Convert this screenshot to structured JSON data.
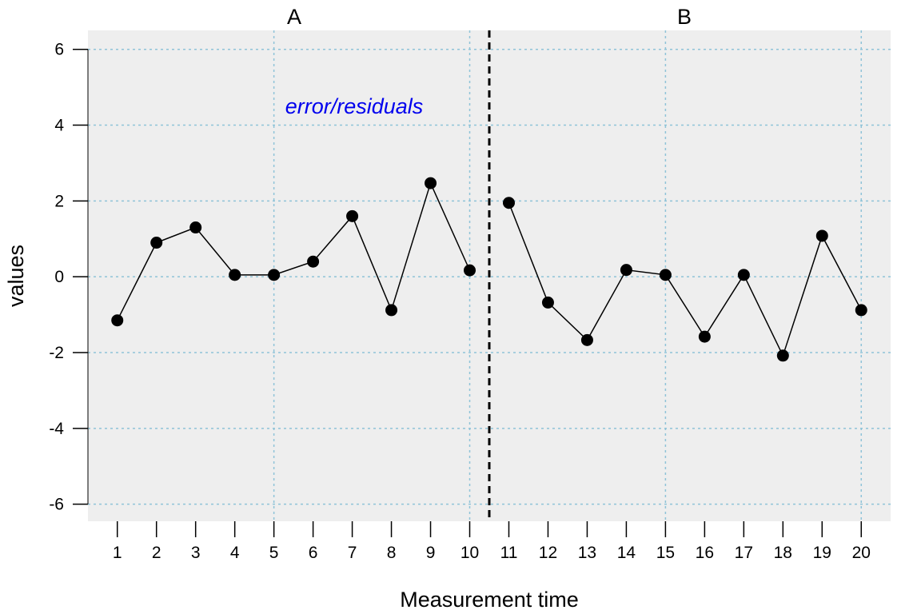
{
  "chart_data": {
    "type": "line",
    "xlabel": "Measurement time",
    "ylabel": "values",
    "annotation": "error/residuals",
    "annotation_color": "#0000ee",
    "phases": [
      {
        "label": "A",
        "x_start": 1,
        "x_end": 10
      },
      {
        "label": "B",
        "x_start": 11,
        "x_end": 20
      }
    ],
    "phase_change_x": 10.5,
    "x_ticks": [
      1,
      2,
      3,
      4,
      5,
      6,
      7,
      8,
      9,
      10,
      11,
      12,
      13,
      14,
      15,
      16,
      17,
      18,
      19,
      20
    ],
    "y_ticks": [
      6,
      4,
      2,
      0,
      -2,
      -4,
      -6
    ],
    "xlim": [
      0.25,
      20.75
    ],
    "ylim": [
      -6.45,
      6.5
    ],
    "grid": true,
    "grid_color": "#8fc3d8",
    "background_color": "#eeeeee",
    "series": [
      {
        "x": [
          1,
          2,
          3,
          4,
          5,
          6,
          7,
          8,
          9,
          10
        ],
        "y": [
          -1.15,
          0.9,
          1.3,
          0.05,
          0.05,
          0.4,
          1.6,
          -0.88,
          2.47,
          0.17
        ]
      },
      {
        "x": [
          11,
          12,
          13,
          14,
          15,
          16,
          17,
          18,
          19,
          20
        ],
        "y": [
          1.95,
          -0.68,
          -1.67,
          0.18,
          0.05,
          -1.58,
          0.05,
          -2.08,
          1.08,
          -0.88
        ]
      }
    ]
  }
}
